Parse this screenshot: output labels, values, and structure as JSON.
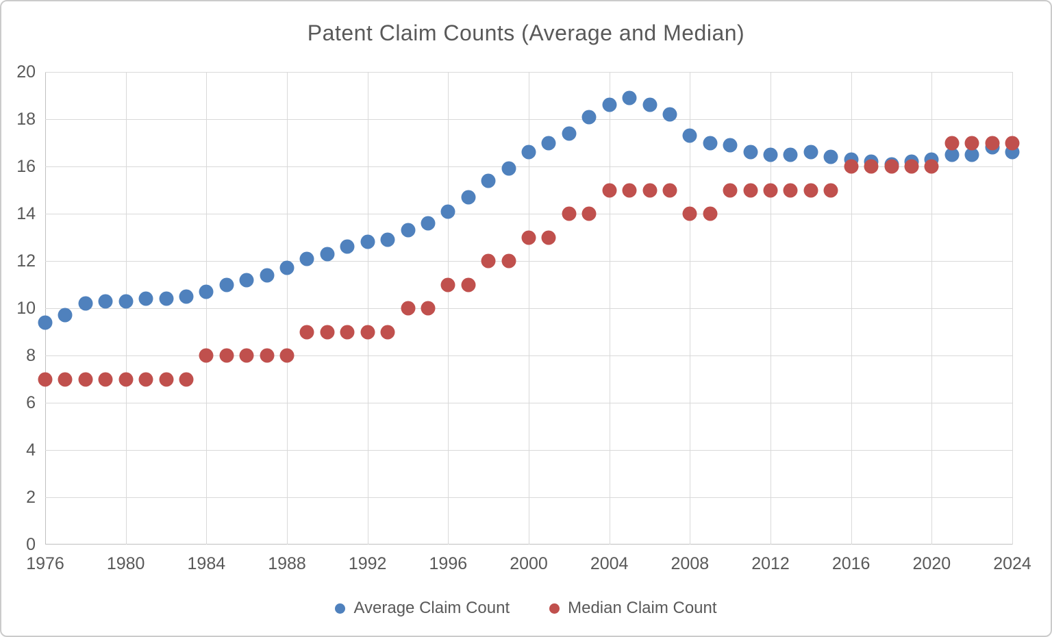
{
  "title": "Patent Claim Counts (Average and Median)",
  "colors": {
    "average": "#4F81BD",
    "median": "#C0504D",
    "gridline": "#D9D9D9",
    "axis": "#BFBFBF",
    "text": "#595959"
  },
  "legend": [
    {
      "label": "Average Claim Count",
      "color": "#4F81BD"
    },
    {
      "label": "Median Claim Count",
      "color": "#C0504D"
    }
  ],
  "chart_data": {
    "type": "scatter",
    "title": "Patent Claim Counts (Average and Median)",
    "xlabel": "",
    "ylabel": "",
    "xlim": [
      1976,
      2024
    ],
    "ylim": [
      0,
      20
    ],
    "x_ticks": [
      1976,
      1980,
      1984,
      1988,
      1992,
      1996,
      2000,
      2004,
      2008,
      2012,
      2016,
      2020,
      2024
    ],
    "y_ticks": [
      0,
      2,
      4,
      6,
      8,
      10,
      12,
      14,
      16,
      18,
      20
    ],
    "grid": true,
    "legend_position": "bottom",
    "x": [
      1976,
      1977,
      1978,
      1979,
      1980,
      1981,
      1982,
      1983,
      1984,
      1985,
      1986,
      1987,
      1988,
      1989,
      1990,
      1991,
      1992,
      1993,
      1994,
      1995,
      1996,
      1997,
      1998,
      1999,
      2000,
      2001,
      2002,
      2003,
      2004,
      2005,
      2006,
      2007,
      2008,
      2009,
      2010,
      2011,
      2012,
      2013,
      2014,
      2015,
      2016,
      2017,
      2018,
      2019,
      2020,
      2021,
      2022,
      2023,
      2024
    ],
    "series": [
      {
        "name": "Average Claim Count",
        "color": "#4F81BD",
        "values": [
          9.4,
          9.7,
          10.2,
          10.3,
          10.3,
          10.4,
          10.4,
          10.5,
          10.7,
          11.0,
          11.2,
          11.4,
          11.7,
          12.1,
          12.3,
          12.6,
          12.8,
          12.9,
          13.3,
          13.6,
          14.1,
          14.7,
          15.4,
          15.9,
          16.6,
          17.0,
          17.4,
          18.1,
          18.6,
          18.9,
          18.6,
          18.2,
          17.3,
          17.0,
          16.9,
          16.6,
          16.5,
          16.5,
          16.6,
          16.4,
          16.3,
          16.2,
          16.1,
          16.2,
          16.3,
          16.5,
          16.5,
          16.8,
          16.6
        ]
      },
      {
        "name": "Median Claim Count",
        "color": "#C0504D",
        "values": [
          7,
          7,
          7,
          7,
          7,
          7,
          7,
          7,
          8,
          8,
          8,
          8,
          8,
          9,
          9,
          9,
          9,
          9,
          10,
          10,
          11,
          11,
          12,
          12,
          13,
          13,
          14,
          14,
          15,
          15,
          15,
          15,
          14,
          14,
          15,
          15,
          15,
          15,
          15,
          15,
          16,
          16,
          16,
          16,
          16,
          17,
          17,
          17,
          17
        ]
      }
    ]
  }
}
